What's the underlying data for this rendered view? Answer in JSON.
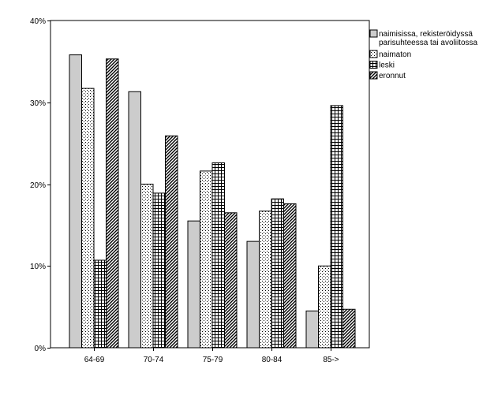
{
  "chart_data": {
    "type": "bar",
    "categories": [
      "64-69",
      "70-74",
      "75-79",
      "80-84",
      "85->"
    ],
    "series": [
      {
        "name": "naimisissa, rekisteröidyssä parisuhteessa tai avoliitossa",
        "legend_lines": [
          "naimisissa, rekisteröidyssä",
          "parisuhteessa tai avoliitossa"
        ],
        "pattern": "solid-gray",
        "values": [
          35.8,
          31.3,
          15.5,
          13.0,
          4.5
        ]
      },
      {
        "name": "naimaton",
        "legend_lines": [
          "naimaton"
        ],
        "pattern": "dots",
        "values": [
          31.7,
          20.0,
          21.6,
          16.7,
          10.0
        ]
      },
      {
        "name": "leski",
        "legend_lines": [
          "leski"
        ],
        "pattern": "crosshatch",
        "values": [
          10.7,
          18.9,
          22.6,
          18.2,
          29.6
        ]
      },
      {
        "name": "eronnut",
        "legend_lines": [
          "eronnut"
        ],
        "pattern": "diagonal",
        "values": [
          35.3,
          25.9,
          16.5,
          17.6,
          4.7
        ]
      }
    ],
    "yticks": [
      "0%",
      "10%",
      "20%",
      "30%",
      "40%"
    ],
    "ylim": [
      0,
      40
    ],
    "legend_position": "top-right",
    "title": "",
    "xlabel": "",
    "ylabel": ""
  },
  "colors": {
    "bar_gray": "#cccccc",
    "outline": "#000000"
  }
}
